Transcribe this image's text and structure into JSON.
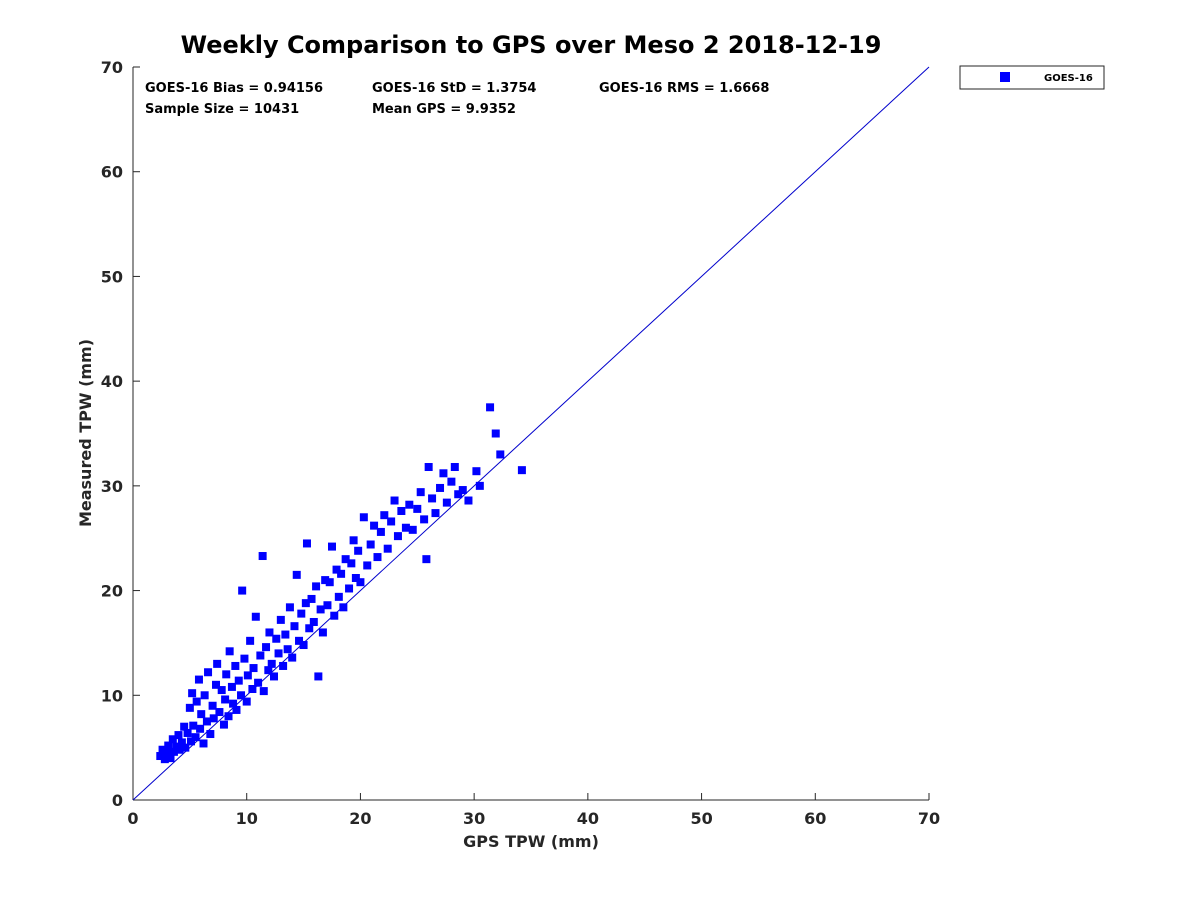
{
  "chart_data": {
    "type": "scatter",
    "title": "Weekly Comparison to GPS over Meso 2 2018-12-19",
    "xlabel": "GPS TPW (mm)",
    "ylabel": "Measured TPW (mm)",
    "xlim": [
      0,
      70
    ],
    "ylim": [
      0,
      70
    ],
    "xticks": [
      "0",
      "10",
      "20",
      "30",
      "40",
      "50",
      "60",
      "70"
    ],
    "yticks": [
      "0",
      "10",
      "20",
      "30",
      "40",
      "50",
      "60",
      "70"
    ],
    "grid": false,
    "legend": {
      "position": "outside-top-right",
      "entries": [
        "GOES-16"
      ]
    },
    "reference_line": {
      "label": "1:1",
      "from": [
        0,
        0
      ],
      "to": [
        70,
        70
      ]
    },
    "series": [
      {
        "name": "GOES-16",
        "color": "#0000ff",
        "marker": "square",
        "points": [
          [
            2.4,
            4.2
          ],
          [
            2.6,
            4.8
          ],
          [
            2.8,
            3.9
          ],
          [
            3.0,
            4.5
          ],
          [
            3.1,
            5.2
          ],
          [
            3.3,
            4.0
          ],
          [
            3.5,
            5.8
          ],
          [
            3.6,
            4.6
          ],
          [
            3.8,
            5.1
          ],
          [
            4.0,
            6.2
          ],
          [
            4.1,
            4.8
          ],
          [
            4.3,
            5.5
          ],
          [
            4.5,
            7.0
          ],
          [
            4.6,
            5.0
          ],
          [
            4.8,
            6.4
          ],
          [
            5.0,
            8.8
          ],
          [
            5.1,
            5.6
          ],
          [
            5.2,
            10.2
          ],
          [
            5.3,
            7.1
          ],
          [
            5.5,
            6.0
          ],
          [
            5.6,
            9.4
          ],
          [
            5.8,
            11.5
          ],
          [
            5.9,
            6.8
          ],
          [
            6.0,
            8.2
          ],
          [
            6.2,
            5.4
          ],
          [
            6.3,
            10.0
          ],
          [
            6.5,
            7.5
          ],
          [
            6.6,
            12.2
          ],
          [
            6.8,
            6.3
          ],
          [
            7.0,
            9.0
          ],
          [
            7.1,
            7.8
          ],
          [
            7.3,
            11.0
          ],
          [
            7.4,
            13.0
          ],
          [
            7.6,
            8.4
          ],
          [
            7.8,
            10.5
          ],
          [
            8.0,
            7.2
          ],
          [
            8.1,
            9.6
          ],
          [
            8.2,
            12.0
          ],
          [
            8.4,
            8.0
          ],
          [
            8.5,
            14.2
          ],
          [
            8.7,
            10.8
          ],
          [
            8.8,
            9.2
          ],
          [
            9.0,
            12.8
          ],
          [
            9.1,
            8.6
          ],
          [
            9.3,
            11.4
          ],
          [
            9.5,
            10.0
          ],
          [
            9.6,
            20.0
          ],
          [
            9.8,
            13.5
          ],
          [
            10.0,
            9.4
          ],
          [
            10.1,
            11.9
          ],
          [
            10.3,
            15.2
          ],
          [
            10.5,
            10.6
          ],
          [
            10.6,
            12.6
          ],
          [
            10.8,
            17.5
          ],
          [
            11.0,
            11.2
          ],
          [
            11.2,
            13.8
          ],
          [
            11.4,
            23.3
          ],
          [
            11.5,
            10.4
          ],
          [
            11.7,
            14.6
          ],
          [
            11.9,
            12.4
          ],
          [
            12.0,
            16.0
          ],
          [
            12.2,
            13.0
          ],
          [
            12.4,
            11.8
          ],
          [
            12.6,
            15.4
          ],
          [
            12.8,
            14.0
          ],
          [
            13.0,
            17.2
          ],
          [
            13.2,
            12.8
          ],
          [
            13.4,
            15.8
          ],
          [
            13.6,
            14.4
          ],
          [
            13.8,
            18.4
          ],
          [
            14.0,
            13.6
          ],
          [
            14.2,
            16.6
          ],
          [
            14.4,
            21.5
          ],
          [
            14.6,
            15.2
          ],
          [
            14.8,
            17.8
          ],
          [
            15.0,
            14.8
          ],
          [
            15.2,
            18.8
          ],
          [
            15.3,
            24.5
          ],
          [
            15.5,
            16.4
          ],
          [
            15.7,
            19.2
          ],
          [
            15.9,
            17.0
          ],
          [
            16.1,
            20.4
          ],
          [
            16.3,
            11.8
          ],
          [
            16.5,
            18.2
          ],
          [
            16.7,
            16.0
          ],
          [
            16.9,
            21.0
          ],
          [
            17.1,
            18.6
          ],
          [
            17.3,
            20.8
          ],
          [
            17.5,
            24.2
          ],
          [
            17.7,
            17.6
          ],
          [
            17.9,
            22.0
          ],
          [
            18.1,
            19.4
          ],
          [
            18.3,
            21.6
          ],
          [
            18.5,
            18.4
          ],
          [
            18.7,
            23.0
          ],
          [
            19.0,
            20.2
          ],
          [
            19.2,
            22.6
          ],
          [
            19.4,
            24.8
          ],
          [
            19.6,
            21.2
          ],
          [
            19.8,
            23.8
          ],
          [
            20.0,
            20.8
          ],
          [
            20.3,
            27.0
          ],
          [
            20.6,
            22.4
          ],
          [
            20.9,
            24.4
          ],
          [
            21.2,
            26.2
          ],
          [
            21.5,
            23.2
          ],
          [
            21.8,
            25.6
          ],
          [
            22.1,
            27.2
          ],
          [
            22.4,
            24.0
          ],
          [
            22.7,
            26.6
          ],
          [
            23.0,
            28.6
          ],
          [
            23.3,
            25.2
          ],
          [
            23.6,
            27.6
          ],
          [
            24.0,
            26.0
          ],
          [
            24.3,
            28.2
          ],
          [
            24.6,
            25.8
          ],
          [
            25.0,
            27.8
          ],
          [
            25.3,
            29.4
          ],
          [
            25.6,
            26.8
          ],
          [
            25.8,
            23.0
          ],
          [
            26.0,
            31.8
          ],
          [
            26.3,
            28.8
          ],
          [
            26.6,
            27.4
          ],
          [
            27.0,
            29.8
          ],
          [
            27.3,
            31.2
          ],
          [
            27.6,
            28.4
          ],
          [
            28.0,
            30.4
          ],
          [
            28.3,
            31.8
          ],
          [
            28.6,
            29.2
          ],
          [
            29.0,
            29.6
          ],
          [
            29.5,
            28.6
          ],
          [
            30.2,
            31.4
          ],
          [
            30.5,
            30.0
          ],
          [
            31.4,
            37.5
          ],
          [
            31.9,
            35.0
          ],
          [
            32.3,
            33.0
          ],
          [
            34.2,
            31.5
          ]
        ]
      }
    ]
  },
  "stats": {
    "bias": "GOES-16 Bias = 0.94156",
    "std": "GOES-16 StD = 1.3754",
    "rms": "GOES-16 RMS = 1.6668",
    "sample_size": "Sample Size = 10431",
    "mean_gps": "Mean GPS = 9.9352"
  },
  "colors": {
    "series": "#0000ff",
    "axis": "#262626",
    "reference_line": "#0000cc"
  }
}
